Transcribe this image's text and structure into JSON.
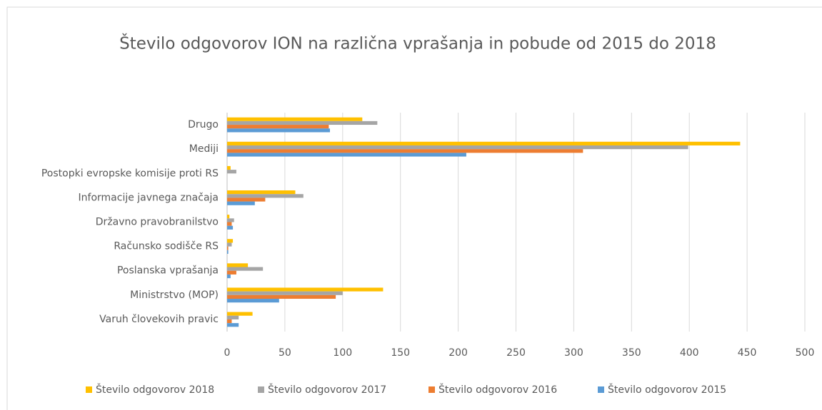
{
  "chart_data": {
    "type": "hbar",
    "title": "Število odgovorov ION na različna vprašanja in pobude od 2015 do 2018",
    "categories": [
      "Drugo",
      "Mediji",
      "Postopki evropske komisije proti RS",
      "Informacije javnega značaja",
      "Državno pravobranilstvo",
      "Računsko sodišče RS",
      "Poslanska vprašanja",
      "Ministrstvo (MOP)",
      "Varuh človekovih pravic"
    ],
    "series": [
      {
        "name": "Število odgovorov 2018",
        "color": "#ffc000",
        "values": [
          117,
          444,
          3,
          59,
          2,
          5,
          18,
          135,
          22
        ]
      },
      {
        "name": "Število odgovorov 2017",
        "color": "#a5a5a5",
        "values": [
          130,
          399,
          8,
          66,
          6,
          4,
          31,
          100,
          10
        ]
      },
      {
        "name": "Število odgovorov 2016",
        "color": "#ed7d31",
        "values": [
          88,
          308,
          0,
          33,
          4,
          1,
          8,
          94,
          4
        ]
      },
      {
        "name": "Število odgovorov 2015",
        "color": "#5b9bd5",
        "values": [
          89,
          207,
          0,
          24,
          5,
          1,
          3,
          45,
          10
        ]
      }
    ],
    "xlim": [
      0,
      500
    ],
    "xticks": [
      0,
      50,
      100,
      150,
      200,
      250,
      300,
      350,
      400,
      450,
      500
    ],
    "grid": true,
    "legend": "bottom"
  }
}
